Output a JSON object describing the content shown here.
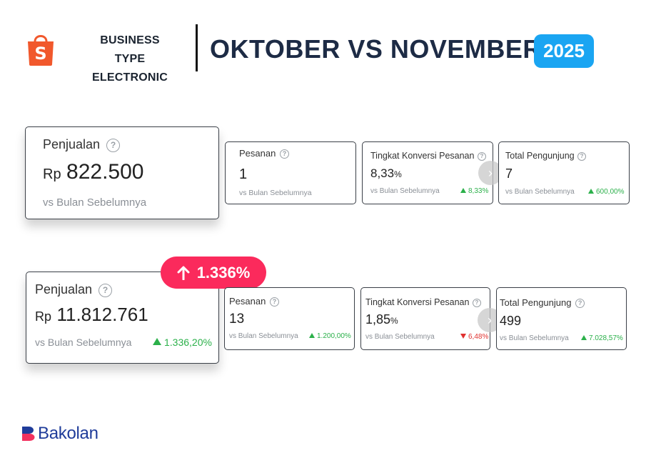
{
  "header": {
    "business_type_label": "BUSINESS TYPE",
    "business_type_value": "ELECTRONIC",
    "title": "OKTOBER VS NOVEMBER",
    "year": "2025"
  },
  "colors": {
    "brand_orange": "#f1582c",
    "year_badge": "#1aa5f2",
    "title_navy": "#1d2b45",
    "badge_pink": "#fb2a5c",
    "positive": "#2bb04a",
    "negative": "#e0312f",
    "brand_blue": "#1f3c9a"
  },
  "oktober": {
    "sales": {
      "label": "Penjualan",
      "currency": "Rp",
      "value": "822.500",
      "compare": "vs Bulan Sebelumnya"
    },
    "orders": {
      "label": "Pesanan",
      "value": "1",
      "compare": "vs Bulan Sebelumnya"
    },
    "conversion": {
      "label": "Tingkat Konversi Pesanan",
      "value": "8,33",
      "unit": "%",
      "compare": "vs Bulan Sebelumnya",
      "change": "8,33%"
    },
    "visitors": {
      "label": "Total Pengunjung",
      "value": "7",
      "compare": "vs Bulan Sebelumnya",
      "change": "600,00%"
    }
  },
  "growth_badge": {
    "icon": "arrow-up-icon",
    "value": "1.336%"
  },
  "november": {
    "sales": {
      "label": "Penjualan",
      "currency": "Rp",
      "value": "11.812.761",
      "compare": "vs Bulan Sebelumnya",
      "change": "1.336,20%"
    },
    "orders": {
      "label": "Pesanan",
      "value": "13",
      "compare": "vs Bulan Sebelumnya",
      "change": "1.200,00%"
    },
    "conversion": {
      "label": "Tingkat Konversi Pesanan",
      "value": "1,85",
      "unit": "%",
      "compare": "vs Bulan Sebelumnya",
      "change": "6,48%"
    },
    "visitors": {
      "label": "Total Pengunjung",
      "value": "499",
      "compare": "vs Bulan Sebelumnya",
      "change": "7.028,57%"
    }
  },
  "help_icon_glyph": "?",
  "nav_icon_glyph": "›",
  "footer": {
    "brand_name": "Bakolan"
  }
}
